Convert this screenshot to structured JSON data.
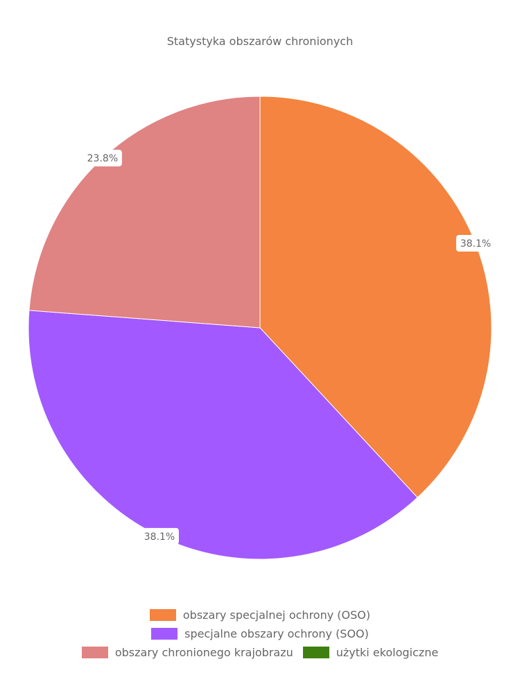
{
  "chart_data": {
    "type": "pie",
    "title": "Statystyka obszarów chronionych",
    "start_angle": "top, clockwise",
    "slices": [
      {
        "label": "obszary specjalnej ochrony (OSO)",
        "value": 38.1,
        "data_label": "38.1%",
        "color": "#F4843F"
      },
      {
        "label": "specjalne obszary ochrony (SOO)",
        "value": 38.1,
        "data_label": "38.1%",
        "color": "#A259FF"
      },
      {
        "label": "obszary chronionego krajobrazu",
        "value": 23.8,
        "data_label": "23.8%",
        "color": "#E08383"
      },
      {
        "label": "użytki ekologiczne",
        "value": 0,
        "data_label": "",
        "color": "#3F7F10"
      }
    ],
    "legend_position": "bottom"
  }
}
